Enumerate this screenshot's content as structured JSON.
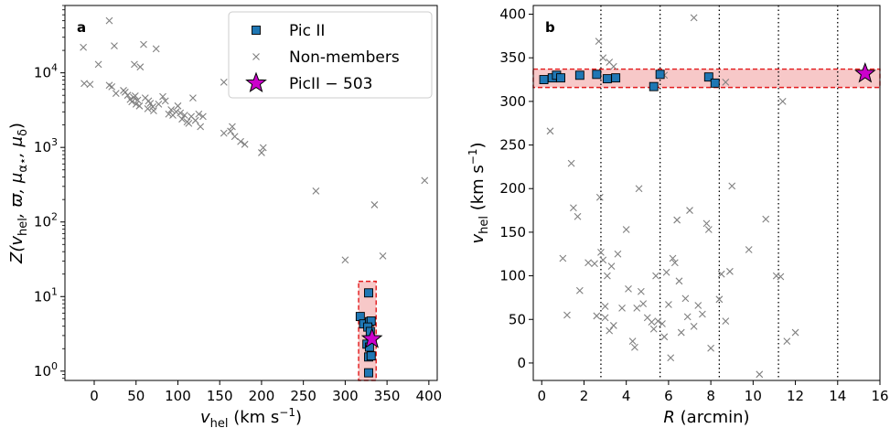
{
  "chart_data": [
    {
      "type": "scatter",
      "panel_label": "a",
      "xlabel_main": "v",
      "xlabel_sub": "hel",
      "xlabel_unit": " (km s",
      "xlabel_exp": "−1",
      "xlabel_close": ")",
      "ylabel": "Z(v",
      "ylabel_sub": "hel",
      "ylabel_rest": ", ϖ, μ",
      "ylabel_sub2": "α⋆",
      "ylabel_rest2": ", μ",
      "ylabel_sub3": "δ",
      "ylabel_close": ")",
      "x_scale": "linear",
      "y_scale": "log",
      "xlim": [
        -35,
        410
      ],
      "ylim": [
        0.75,
        80000
      ],
      "x_ticks": [
        0,
        50,
        100,
        150,
        200,
        250,
        300,
        350,
        400
      ],
      "x_tick_labels": [
        "0",
        "50",
        "100",
        "150",
        "200",
        "250",
        "300",
        "350",
        "400"
      ],
      "y_ticks": [
        1,
        10,
        100,
        1000,
        10000
      ],
      "y_tick_base": [
        "10",
        "10",
        "10",
        "10",
        "10"
      ],
      "y_tick_exp": [
        "0",
        "1",
        "2",
        "3",
        "4"
      ],
      "legend": {
        "placement": "top-right",
        "entries": [
          "Pic II",
          "Non-members",
          "PicII − 503"
        ]
      },
      "highlight_box": {
        "x": [
          316,
          337
        ],
        "y": [
          0.75,
          16
        ]
      },
      "series": [
        {
          "name": "Pic II",
          "marker": "square",
          "color": "#1f77b4",
          "points": [
            [
              318,
              5.4
            ],
            [
              322,
              4.3
            ],
            [
              328,
              11.2
            ],
            [
              329,
              4.6
            ],
            [
              331,
              4.7
            ],
            [
              327,
              3.9
            ],
            [
              330,
              3.4
            ],
            [
              326,
              2.3
            ],
            [
              329,
              2.1
            ],
            [
              328,
              1.55
            ],
            [
              331,
              1.6
            ],
            [
              328,
              0.95
            ]
          ]
        },
        {
          "name": "Non-members",
          "marker": "x",
          "color": "#808080",
          "points": [
            [
              -13,
              22000
            ],
            [
              -12,
              7200
            ],
            [
              -5,
              7000
            ],
            [
              5,
              13000
            ],
            [
              18,
              50000
            ],
            [
              24,
              23000
            ],
            [
              18,
              6800
            ],
            [
              21,
              6500
            ],
            [
              26,
              5300
            ],
            [
              35,
              5800
            ],
            [
              37,
              5500
            ],
            [
              40,
              5000
            ],
            [
              43,
              4400
            ],
            [
              45,
              4100
            ],
            [
              47,
              4700
            ],
            [
              49,
              4900
            ],
            [
              50,
              3800
            ],
            [
              52,
              4300
            ],
            [
              54,
              3600
            ],
            [
              55,
              12000
            ],
            [
              48,
              13000
            ],
            [
              59,
              24000
            ],
            [
              61,
              4600
            ],
            [
              65,
              4200
            ],
            [
              67,
              3900
            ],
            [
              70,
              3500
            ],
            [
              64,
              3300
            ],
            [
              71,
              3100
            ],
            [
              74,
              21000
            ],
            [
              77,
              3800
            ],
            [
              82,
              4800
            ],
            [
              85,
              4200
            ],
            [
              89,
              2800
            ],
            [
              92,
              3200
            ],
            [
              94,
              2700
            ],
            [
              98,
              3000
            ],
            [
              100,
              3600
            ],
            [
              103,
              2900
            ],
            [
              105,
              2400
            ],
            [
              108,
              2700
            ],
            [
              111,
              2200
            ],
            [
              113,
              2100
            ],
            [
              116,
              2600
            ],
            [
              118,
              4600
            ],
            [
              121,
              2300
            ],
            [
              125,
              2800
            ],
            [
              127,
              1900
            ],
            [
              130,
              2600
            ],
            [
              155,
              1550
            ],
            [
              155,
              7500
            ],
            [
              163,
              1650
            ],
            [
              165,
              1900
            ],
            [
              168,
              1400
            ],
            [
              175,
              1200
            ],
            [
              180,
              1100
            ],
            [
              200,
              850
            ],
            [
              202,
              990
            ],
            [
              265,
              260
            ],
            [
              300,
              31
            ],
            [
              335,
              170
            ],
            [
              345,
              35
            ],
            [
              395,
              360
            ]
          ]
        },
        {
          "name": "PicII − 503",
          "marker": "star",
          "color": "#cc00cc",
          "points": [
            [
              332,
              2.7
            ]
          ]
        }
      ]
    },
    {
      "type": "scatter",
      "panel_label": "b",
      "xlabel_main": "R",
      "xlabel_unit": " (arcmin)",
      "ylabel": "v",
      "ylabel_sub": "hel",
      "ylabel_unit": " (km s",
      "ylabel_exp": "−1",
      "ylabel_close": ")",
      "x_scale": "linear",
      "y_scale": "linear",
      "xlim": [
        -0.4,
        16
      ],
      "ylim": [
        -20,
        410
      ],
      "x_ticks": [
        0,
        2,
        4,
        6,
        8,
        10,
        12,
        14,
        16
      ],
      "x_tick_labels": [
        "0",
        "2",
        "4",
        "6",
        "8",
        "10",
        "12",
        "14",
        "16"
      ],
      "y_ticks": [
        0,
        50,
        100,
        150,
        200,
        250,
        300,
        350,
        400
      ],
      "y_tick_labels": [
        "0",
        "50",
        "100",
        "150",
        "200",
        "250",
        "300",
        "350",
        "400"
      ],
      "vertical_lines": [
        2.8,
        5.6,
        8.4,
        11.2,
        14.0
      ],
      "highlight_band": {
        "y": [
          316,
          337
        ]
      },
      "series": [
        {
          "name": "Pic II",
          "marker": "square",
          "color": "#1f77b4",
          "points": [
            [
              0.1,
              325
            ],
            [
              0.5,
              327
            ],
            [
              0.7,
              330
            ],
            [
              0.9,
              327
            ],
            [
              1.8,
              330
            ],
            [
              2.6,
              331
            ],
            [
              3.1,
              326
            ],
            [
              3.5,
              327
            ],
            [
              5.3,
              317
            ],
            [
              5.6,
              331
            ],
            [
              7.9,
              328
            ],
            [
              8.2,
              321
            ]
          ]
        },
        {
          "name": "Non-members",
          "marker": "x",
          "color": "#808080",
          "points": [
            [
              0.4,
              266
            ],
            [
              1.0,
              120
            ],
            [
              1.2,
              55
            ],
            [
              1.4,
              229
            ],
            [
              1.5,
              178
            ],
            [
              1.7,
              168
            ],
            [
              1.8,
              83
            ],
            [
              2.2,
              115
            ],
            [
              2.5,
              114
            ],
            [
              2.6,
              54
            ],
            [
              2.7,
              369
            ],
            [
              2.75,
              190
            ],
            [
              2.8,
              127
            ],
            [
              2.9,
              118
            ],
            [
              3.0,
              65
            ],
            [
              3.0,
              52
            ],
            [
              3.1,
              100
            ],
            [
              3.2,
              37
            ],
            [
              3.3,
              111
            ],
            [
              3.4,
              43
            ],
            [
              3.6,
              125
            ],
            [
              3.8,
              63
            ],
            [
              4.0,
              153
            ],
            [
              4.1,
              85
            ],
            [
              4.3,
              25
            ],
            [
              4.4,
              18
            ],
            [
              4.5,
              63
            ],
            [
              4.6,
              200
            ],
            [
              4.7,
              82
            ],
            [
              4.8,
              68
            ],
            [
              5.0,
              52
            ],
            [
              5.2,
              47
            ],
            [
              5.3,
              39
            ],
            [
              5.4,
              100
            ],
            [
              5.5,
              48
            ],
            [
              5.7,
              45
            ],
            [
              5.8,
              30
            ],
            [
              5.9,
              104
            ],
            [
              6.0,
              67
            ],
            [
              6.1,
              6
            ],
            [
              6.2,
              120
            ],
            [
              6.3,
              115
            ],
            [
              6.4,
              164
            ],
            [
              6.5,
              94
            ],
            [
              6.6,
              35
            ],
            [
              6.8,
              74
            ],
            [
              6.9,
              53
            ],
            [
              7.0,
              175
            ],
            [
              7.2,
              42
            ],
            [
              7.4,
              66
            ],
            [
              7.6,
              56
            ],
            [
              7.8,
              160
            ],
            [
              7.9,
              153
            ],
            [
              8.0,
              17
            ],
            [
              8.4,
              73
            ],
            [
              8.5,
              102
            ],
            [
              8.7,
              48
            ],
            [
              8.9,
              105
            ],
            [
              9.0,
              203
            ],
            [
              9.8,
              130
            ],
            [
              10.3,
              -13
            ],
            [
              10.6,
              165
            ],
            [
              11.1,
              100
            ],
            [
              11.3,
              99
            ],
            [
              11.4,
              300
            ],
            [
              11.6,
              25
            ],
            [
              12.0,
              35
            ],
            [
              7.2,
              396
            ],
            [
              8.7,
              322
            ],
            [
              3.2,
              345
            ],
            [
              3.4,
              340
            ],
            [
              2.9,
              350
            ],
            [
              5.8,
              330
            ]
          ]
        },
        {
          "name": "PicII − 503",
          "marker": "star",
          "color": "#cc00cc",
          "points": [
            [
              15.3,
              332
            ]
          ]
        }
      ]
    }
  ]
}
